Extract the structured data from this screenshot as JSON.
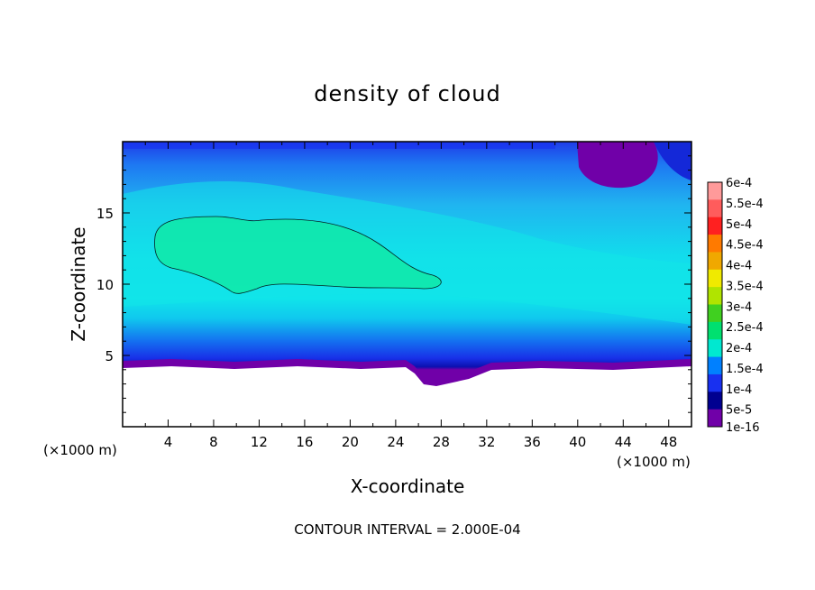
{
  "chart_data": {
    "type": "heatmap",
    "title": "density of cloud",
    "xlabel": "X-coordinate",
    "ylabel": "Z-coordinate",
    "x_unit_left": "(×1000 m)",
    "x_unit_right": "(×1000 m)",
    "x_ticks": [
      "4",
      "8",
      "12",
      "16",
      "20",
      "24",
      "28",
      "32",
      "36",
      "40",
      "44",
      "48"
    ],
    "y_ticks": [
      "5",
      "10",
      "15"
    ],
    "xlim": [
      0,
      50
    ],
    "ylim": [
      0,
      20
    ],
    "footer": "CONTOUR INTERVAL = 2.000E-04",
    "contour_interval": 0.0002,
    "colorbar": {
      "labels": [
        "6e-4",
        "5.5e-4",
        "5e-4",
        "4.5e-4",
        "4e-4",
        "3.5e-4",
        "3e-4",
        "2.5e-4",
        "2e-4",
        "1.5e-4",
        "1e-4",
        "5e-5",
        "1e-16"
      ],
      "colors": [
        "#ff9a9a",
        "#ff5c5c",
        "#ff2020",
        "#ff7a00",
        "#f0a800",
        "#f0ea00",
        "#b0e400",
        "#40d020",
        "#00e070",
        "#00e8d0",
        "#0080ff",
        "#1830f0",
        "#000090",
        "#7000a8"
      ]
    }
  }
}
